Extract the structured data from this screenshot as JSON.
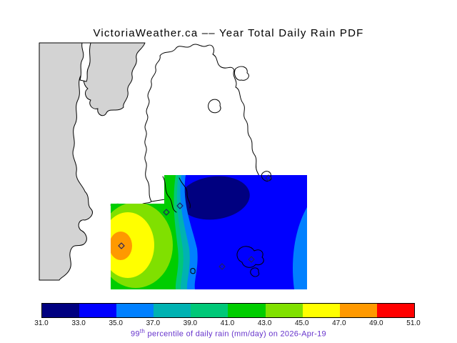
{
  "title": "VictoriaWeather.ca –– Year Total Daily Rain PDF",
  "caption": {
    "prefix": "99",
    "sup": "th",
    "rest": " percentile of daily rain (mm/day) on 2026-Apr-19",
    "color": "#6633cc"
  },
  "map": {
    "land_color": "#d3d3d3",
    "water_color": "#ffffff",
    "coast_color": "#000000"
  },
  "palette": {
    "colors": [
      "#000080",
      "#0000ff",
      "#0080ff",
      "#00b2b2",
      "#00c878",
      "#00cd00",
      "#80e000",
      "#ffff00",
      "#ff9900",
      "#ff0000"
    ]
  },
  "colorbar": {
    "tick_labels": [
      "31.0",
      "33.0",
      "35.0",
      "37.0",
      "39.0",
      "41.0",
      "43.0",
      "45.0",
      "47.0",
      "49.0",
      "51.0"
    ]
  },
  "chart_data": {
    "type": "heatmap",
    "title": "VictoriaWeather.ca –– Year Total Daily Rain PDF",
    "variable": "99th percentile of daily rain (mm/day) on 2026-Apr-19",
    "levels": [
      31.0,
      33.0,
      35.0,
      37.0,
      39.0,
      41.0,
      43.0,
      45.0,
      47.0,
      49.0,
      51.0
    ],
    "colors": [
      "#000080",
      "#0000ff",
      "#0080ff",
      "#00b2b2",
      "#00c878",
      "#00cd00",
      "#80e000",
      "#ffff00",
      "#ff9900",
      "#ff0000"
    ],
    "legend_position": "bottom",
    "field_summary": {
      "background_band": "33-35",
      "minimum_core_band": "31-33",
      "minimum_core_location": "upper-center of field",
      "maximum_core_band": "47-49",
      "maximum_core_location": "west edge of field"
    }
  }
}
